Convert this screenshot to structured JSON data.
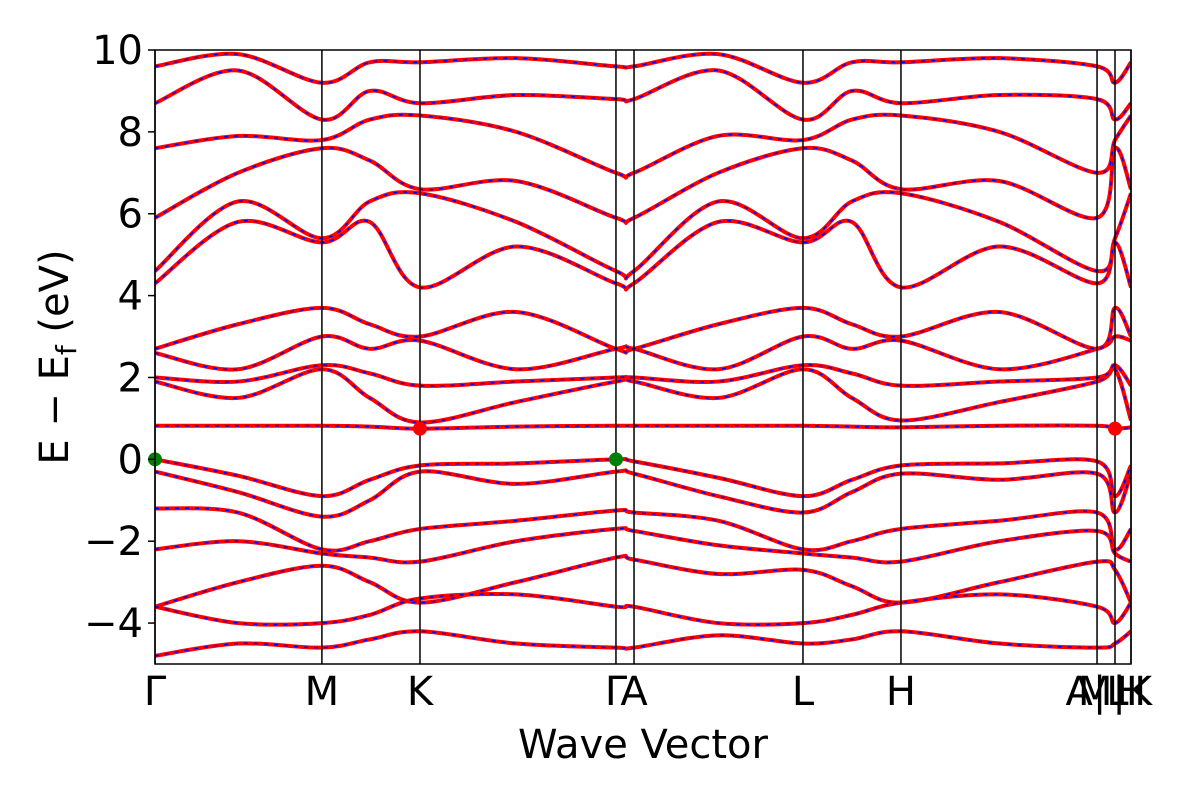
{
  "chart_data": {
    "type": "line",
    "xlabel": "Wave Vector",
    "ylabel": {
      "main": "E − E",
      "subscript": "f",
      "unit": " (eV)"
    },
    "xlim": [
      0,
      1
    ],
    "xticks": [
      {
        "value": 0,
        "label": "Γ"
      },
      {
        "value": 0.171,
        "label": "M"
      },
      {
        "value": 0.2715,
        "label": "K"
      },
      {
        "value": 0.4723,
        "label": "Γ"
      },
      {
        "value": 0.4908,
        "label": "A"
      },
      {
        "value": 0.6639,
        "label": "L"
      },
      {
        "value": 0.7643,
        "label": "H"
      },
      {
        "value": 0.9652,
        "label": "A|L"
      },
      {
        "value": 0.9836,
        "label": "M|K"
      },
      {
        "value": 1,
        "label": "H"
      }
    ],
    "ylim": [
      -5,
      10
    ],
    "yticks": [
      {
        "value": -4,
        "label": "−4"
      },
      {
        "value": -2,
        "label": "−2"
      },
      0,
      2,
      4,
      6,
      8,
      10
    ],
    "x": [
      0,
      0.085,
      0.171,
      0.22,
      0.2715,
      0.37,
      0.4723,
      0.4908,
      0.577,
      0.6639,
      0.714,
      0.7643,
      0.865,
      0.9652,
      0.9836,
      1
    ],
    "color": "#ff0000",
    "dash_color": "#0000ff",
    "bands": [
      [
        0,
        -0.4,
        -0.9,
        -0.5,
        -0.15,
        -0.1,
        0,
        -0.05,
        -0.45,
        -0.9,
        -0.5,
        -0.15,
        -0.1,
        -0.05,
        -0.9,
        -0.15
      ],
      [
        -0.3,
        -0.8,
        -1.4,
        -1.0,
        -0.3,
        -0.6,
        -0.3,
        -0.35,
        -0.9,
        -1.3,
        -0.8,
        -0.35,
        -0.5,
        -0.35,
        -1.3,
        -0.35
      ],
      [
        -1.2,
        -1.3,
        -2.2,
        -2.0,
        -1.7,
        -1.5,
        -1.25,
        -1.3,
        -1.5,
        -2.2,
        -2.0,
        -1.7,
        -1.5,
        -1.3,
        -2.2,
        -1.7
      ],
      [
        -2.2,
        -2.0,
        -2.3,
        -2.4,
        -2.5,
        -2.0,
        -1.7,
        -1.75,
        -2.1,
        -2.3,
        -2.4,
        -2.5,
        -2.0,
        -1.75,
        -2.3,
        -2.5
      ],
      [
        -3.6,
        -3.0,
        -2.6,
        -3.0,
        -3.5,
        -3.0,
        -2.4,
        -2.45,
        -2.8,
        -2.7,
        -3.1,
        -3.5,
        -3.0,
        -2.5,
        -2.7,
        -3.5
      ],
      [
        -3.6,
        -4.0,
        -4.0,
        -3.8,
        -3.4,
        -3.3,
        -3.6,
        -3.6,
        -4.0,
        -4.0,
        -3.8,
        -3.5,
        -3.3,
        -3.6,
        -4.0,
        -3.5
      ],
      [
        -4.8,
        -4.5,
        -4.6,
        -4.4,
        -4.2,
        -4.5,
        -4.6,
        -4.6,
        -4.3,
        -4.5,
        -4.4,
        -4.2,
        -4.5,
        -4.6,
        -4.5,
        -4.2
      ],
      [
        0.82,
        0.82,
        0.82,
        0.8,
        0.75,
        0.8,
        0.82,
        0.82,
        0.82,
        0.82,
        0.8,
        0.78,
        0.82,
        0.82,
        0.75,
        0.78
      ],
      [
        1.9,
        1.5,
        2.2,
        1.5,
        0.9,
        1.4,
        1.9,
        1.9,
        1.5,
        2.2,
        1.5,
        0.95,
        1.4,
        1.9,
        2.2,
        0.95
      ],
      [
        2.0,
        1.9,
        2.3,
        2.1,
        1.8,
        1.9,
        2.0,
        2.0,
        1.9,
        2.3,
        2.1,
        1.8,
        1.9,
        2.0,
        2.3,
        1.8
      ],
      [
        2.6,
        2.2,
        3.0,
        2.7,
        2.9,
        2.2,
        2.7,
        2.7,
        2.2,
        3.0,
        2.7,
        2.9,
        2.2,
        2.7,
        3.0,
        2.9
      ],
      [
        2.7,
        3.3,
        3.7,
        3.3,
        3.0,
        3.6,
        2.7,
        2.7,
        3.3,
        3.7,
        3.3,
        3.0,
        3.6,
        2.7,
        3.7,
        3.0
      ],
      [
        4.3,
        5.8,
        5.3,
        5.8,
        4.2,
        5.2,
        4.3,
        4.3,
        5.8,
        5.3,
        5.8,
        4.2,
        5.2,
        4.3,
        5.3,
        4.2
      ],
      [
        4.6,
        6.3,
        5.4,
        6.3,
        6.5,
        5.8,
        4.6,
        4.6,
        6.3,
        5.4,
        6.3,
        6.5,
        5.8,
        4.6,
        5.4,
        6.5
      ],
      [
        5.9,
        7.0,
        7.6,
        7.3,
        6.6,
        6.8,
        5.9,
        5.9,
        7.0,
        7.6,
        7.3,
        6.6,
        6.8,
        5.9,
        7.6,
        6.6
      ],
      [
        7.6,
        7.9,
        7.8,
        8.3,
        8.4,
        8.0,
        7.0,
        7.0,
        7.9,
        7.8,
        8.3,
        8.4,
        8.0,
        7.0,
        7.8,
        8.4
      ],
      [
        8.7,
        9.5,
        8.3,
        9.0,
        8.7,
        8.9,
        8.8,
        8.8,
        9.5,
        8.3,
        9.0,
        8.7,
        8.9,
        8.8,
        8.3,
        8.7
      ],
      [
        9.6,
        9.9,
        9.2,
        9.7,
        9.7,
        9.8,
        9.6,
        9.6,
        9.9,
        9.2,
        9.7,
        9.7,
        9.8,
        9.6,
        9.2,
        9.7
      ]
    ],
    "points": [
      {
        "color": "#008000",
        "x": [
          0,
          0.4723
        ],
        "y": [
          0,
          0
        ]
      },
      {
        "color": "#ff0000",
        "x": [
          0.2715,
          0.9836
        ],
        "y": [
          0.75,
          0.75
        ]
      }
    ]
  }
}
